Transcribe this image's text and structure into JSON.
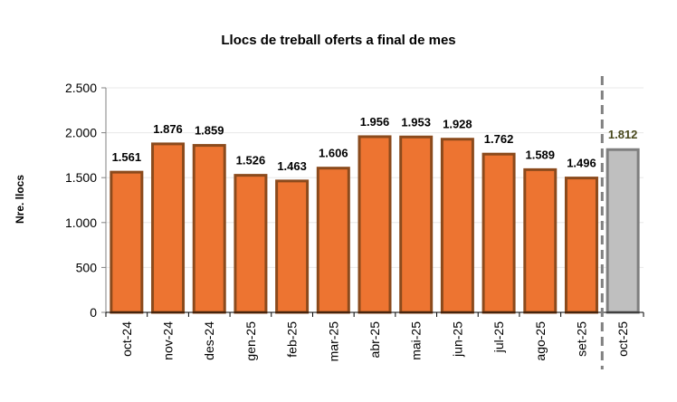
{
  "chart_data": {
    "type": "bar",
    "title": "Llocs de treball oferts a final de mes",
    "xlabel": "",
    "ylabel": "Nre. llocs",
    "ylim": [
      0,
      2500
    ],
    "yticks": [
      0,
      500,
      1000,
      1500,
      2000,
      2500
    ],
    "ytick_labels": [
      "0",
      "500",
      "1.000",
      "1.500",
      "2.000",
      "2.500"
    ],
    "grid": true,
    "categories": [
      "oct-24",
      "nov-24",
      "des-24",
      "gen-25",
      "feb-25",
      "mar-25",
      "abr-25",
      "mai-25",
      "jun-25",
      "jul-25",
      "ago-25",
      "set-25",
      "oct-25"
    ],
    "values": [
      1561,
      1876,
      1859,
      1526,
      1463,
      1606,
      1956,
      1953,
      1928,
      1762,
      1589,
      1496,
      1812
    ],
    "value_labels": [
      "1.561",
      "1.876",
      "1.859",
      "1.526",
      "1.463",
      "1.606",
      "1.956",
      "1.953",
      "1.928",
      "1.762",
      "1.589",
      "1.496",
      "1.812"
    ],
    "highlight_index": 12,
    "separator_before_index": 12,
    "colors": {
      "bar_fill": "#ED7431",
      "bar_border": "#8B4A1C",
      "highlight_fill": "#BFBFBF",
      "highlight_border": "#7F7F7F",
      "highlight_label": "#4A4A1E",
      "gridline": "#E8E8E8",
      "axis": "#808080",
      "separator": "#808080"
    }
  }
}
